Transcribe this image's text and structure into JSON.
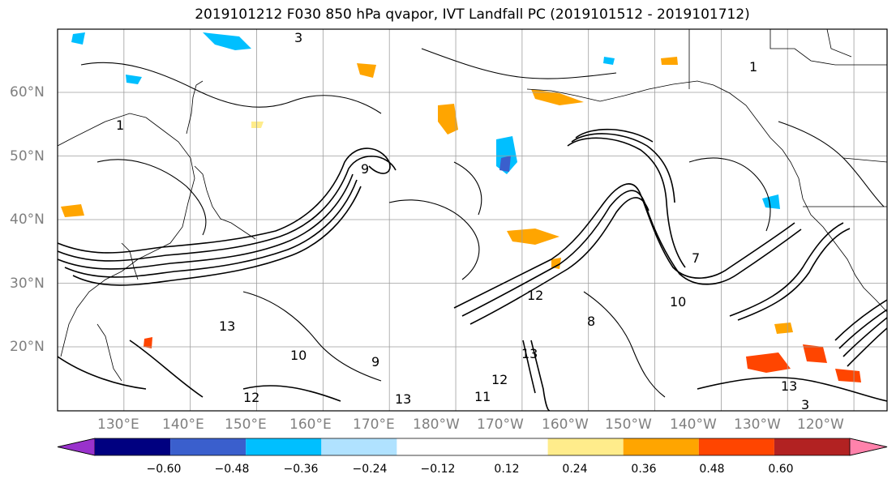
{
  "title": "2019101212 F030 850 hPa qvapor, IVT Landfall PC (2019101512 - 2019101712)",
  "map": {
    "extent": {
      "lon_min": 120,
      "lon_max": 245,
      "lat_min": 10,
      "lat_max": 70
    },
    "lat_labels": [
      "20°N",
      "30°N",
      "40°N",
      "50°N",
      "60°N"
    ],
    "lon_labels": [
      "130°E",
      "140°E",
      "150°E",
      "160°E",
      "170°E",
      "180°W",
      "170°W",
      "160°W",
      "150°W",
      "140°W",
      "130°W",
      "120°W"
    ],
    "contour_labels": [
      "3",
      "1",
      "1",
      "9",
      "12",
      "13",
      "13",
      "10",
      "7",
      "9",
      "10",
      "12",
      "11",
      "13",
      "3",
      "13",
      "12",
      "8"
    ]
  },
  "colorbar": {
    "colors": [
      "#9932cc",
      "#000080",
      "#3a5fcd",
      "#00bfff",
      "#b0e2ff",
      "#ffffff",
      "#ffffff",
      "#ffec8b",
      "#ffa500",
      "#ff4500",
      "#b22222",
      "#ff82ab"
    ],
    "tick_labels": [
      "−0.60",
      "−0.48",
      "−0.36",
      "−0.24",
      "−0.12",
      "0.12",
      "0.24",
      "0.36",
      "0.48",
      "0.60"
    ]
  }
}
